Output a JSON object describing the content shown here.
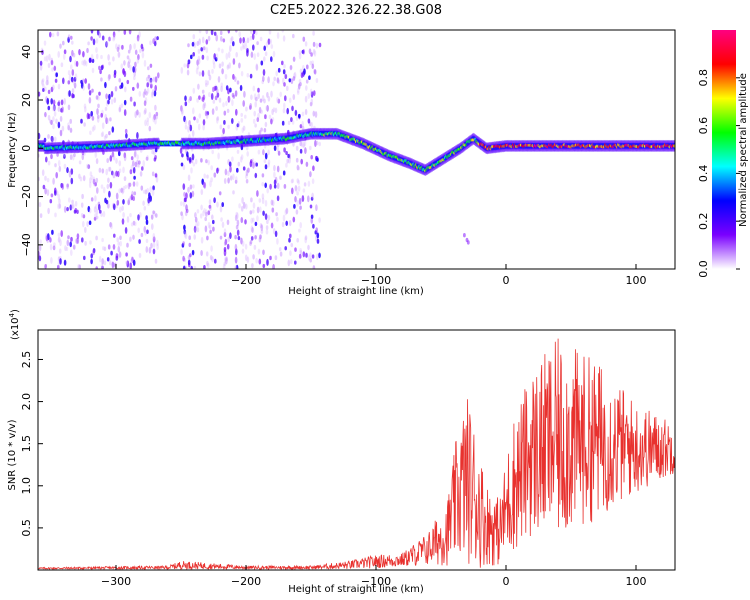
{
  "figure": {
    "title": "C2E5.2022.326.22.38.G08"
  },
  "chart_data": [
    {
      "type": "heatmap",
      "name": "spectrogram",
      "xlabel": "Height of straight line (km)",
      "ylabel": "Frequency (Hz)",
      "xlim": [
        -360,
        130
      ],
      "ylim": [
        -50,
        49
      ],
      "x_ticks": [
        -300,
        -200,
        -100,
        0,
        100
      ],
      "y_ticks": [
        -40,
        -20,
        0,
        20,
        40
      ],
      "colorbar": {
        "label": "Normalized spectral amplitude",
        "range": [
          0.0,
          1.0
        ],
        "ticks": [
          "0.0",
          "0.2",
          "0.4",
          "0.6",
          "0.8"
        ],
        "tick_values": [
          0.0,
          0.2,
          0.4,
          0.6,
          0.8
        ],
        "colormap": [
          "#ffffff",
          "#7a00ff",
          "#0000ff",
          "#00ffff",
          "#00ff00",
          "#ffff00",
          "#ff0000",
          "#ff0080"
        ]
      },
      "signal_track": [
        {
          "x": -355,
          "f": 0
        },
        {
          "x": -300,
          "f": 1
        },
        {
          "x": -270,
          "f": 2
        },
        {
          "x": -230,
          "f": 2
        },
        {
          "x": -200,
          "f": 3
        },
        {
          "x": -170,
          "f": 4
        },
        {
          "x": -150,
          "f": 6
        },
        {
          "x": -130,
          "f": 6
        },
        {
          "x": -110,
          "f": 2
        },
        {
          "x": -90,
          "f": -3
        },
        {
          "x": -75,
          "f": -6
        },
        {
          "x": -62,
          "f": -9
        },
        {
          "x": -50,
          "f": -5
        },
        {
          "x": -35,
          "f": 0
        },
        {
          "x": -25,
          "f": 4
        },
        {
          "x": -15,
          "f": 0
        },
        {
          "x": 0,
          "f": 1
        },
        {
          "x": 50,
          "f": 1
        },
        {
          "x": 100,
          "f": 1
        },
        {
          "x": 128,
          "f": 1
        }
      ],
      "noise_regions": [
        [
          -360,
          -267
        ],
        [
          -250,
          -143
        ]
      ]
    },
    {
      "type": "line",
      "name": "snr",
      "xlabel": "Height of straight line (km)",
      "ylabel": "SNR (10 * v/v)",
      "y_multiplier": "(x10",
      "y_multiplier_exp": "4",
      "y_multiplier_close": ")",
      "xlim": [
        -360,
        130
      ],
      "ylim": [
        0,
        2.85
      ],
      "x_ticks": [
        -300,
        -200,
        -100,
        0,
        100
      ],
      "y_ticks": [
        0.5,
        1.0,
        1.5,
        2.0,
        2.5
      ],
      "y_tick_labels": [
        "0.5",
        "1.0",
        "1.5",
        "2.0",
        "2.5"
      ],
      "color": "#e8312e",
      "envelope": [
        {
          "x": -360,
          "mean": 0.02,
          "amp": 0.01
        },
        {
          "x": -260,
          "mean": 0.03,
          "amp": 0.02
        },
        {
          "x": -250,
          "mean": 0.06,
          "amp": 0.05
        },
        {
          "x": -200,
          "mean": 0.03,
          "amp": 0.02
        },
        {
          "x": -150,
          "mean": 0.03,
          "amp": 0.02
        },
        {
          "x": -120,
          "mean": 0.06,
          "amp": 0.05
        },
        {
          "x": -100,
          "mean": 0.1,
          "amp": 0.08
        },
        {
          "x": -80,
          "mean": 0.12,
          "amp": 0.08
        },
        {
          "x": -60,
          "mean": 0.25,
          "amp": 0.2
        },
        {
          "x": -45,
          "mean": 0.45,
          "amp": 0.4
        },
        {
          "x": -38,
          "mean": 0.85,
          "amp": 0.75
        },
        {
          "x": -30,
          "mean": 1.1,
          "amp": 1.0
        },
        {
          "x": -25,
          "mean": 0.9,
          "amp": 0.9
        },
        {
          "x": -15,
          "mean": 0.55,
          "amp": 0.5
        },
        {
          "x": -5,
          "mean": 0.45,
          "amp": 0.4
        },
        {
          "x": 5,
          "mean": 1.0,
          "amp": 0.8
        },
        {
          "x": 20,
          "mean": 1.4,
          "amp": 1.0
        },
        {
          "x": 40,
          "mean": 1.55,
          "amp": 1.2
        },
        {
          "x": 70,
          "mean": 1.55,
          "amp": 0.95
        },
        {
          "x": 100,
          "mean": 1.45,
          "amp": 0.55
        },
        {
          "x": 130,
          "mean": 1.45,
          "amp": 0.3
        }
      ]
    }
  ]
}
